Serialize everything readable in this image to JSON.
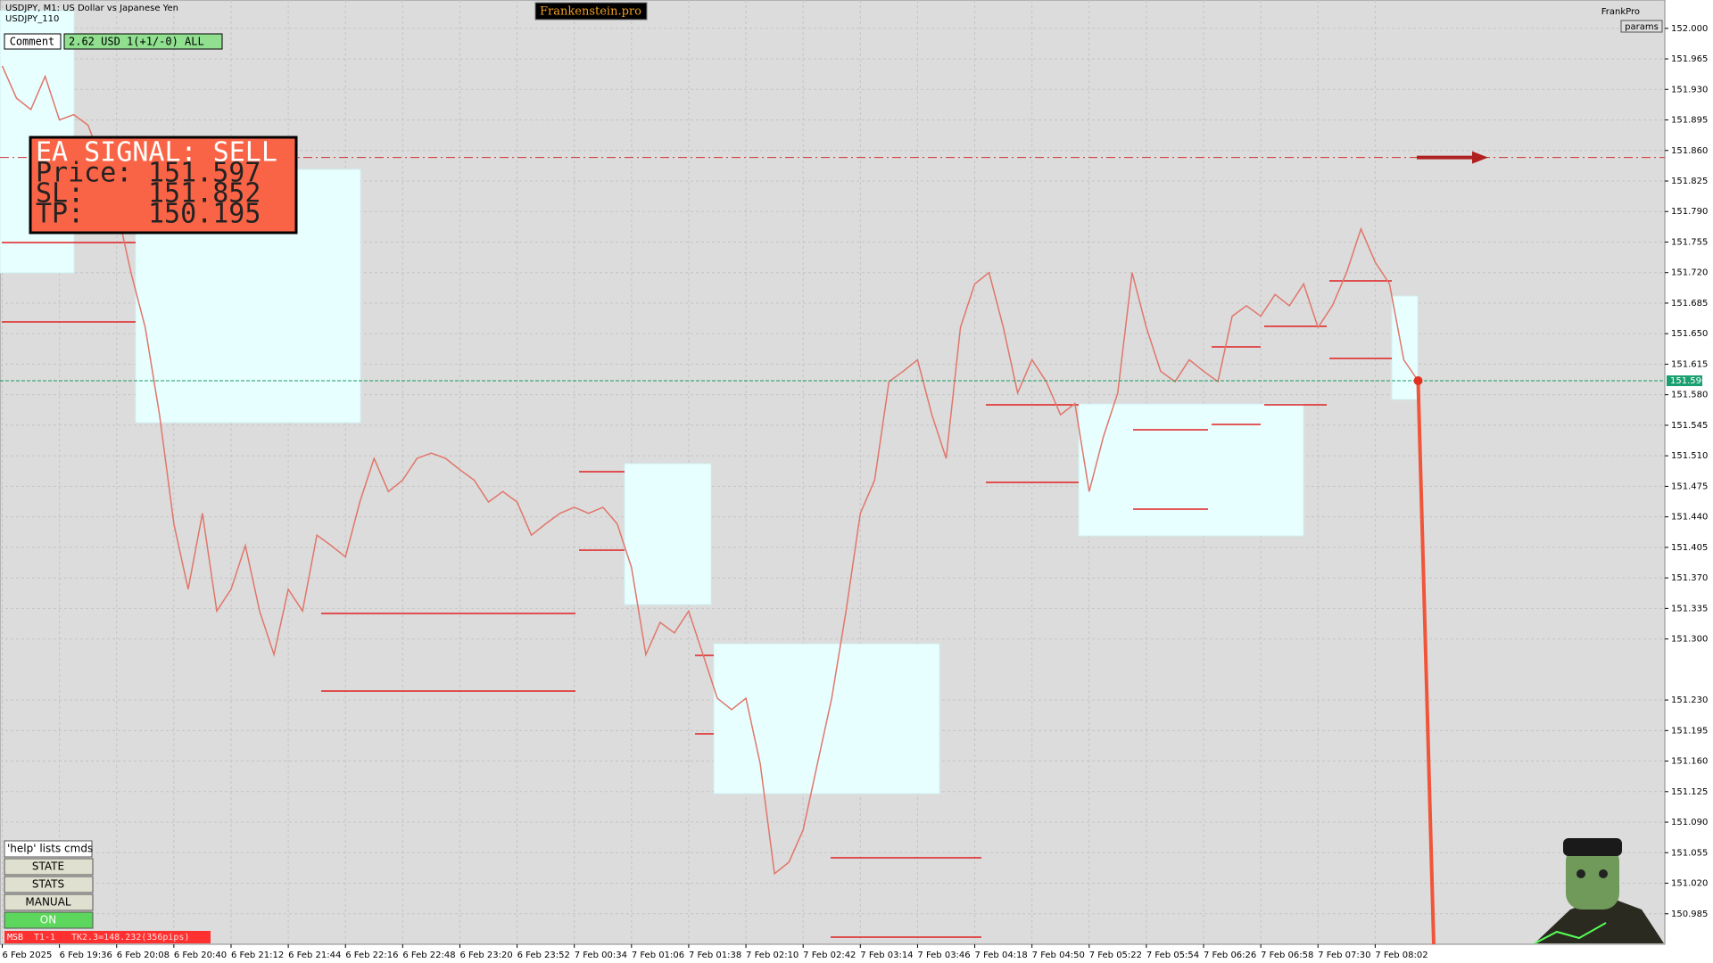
{
  "header": {
    "title": "USDJPY, M1:  US Dollar vs Japanese Yen",
    "subtitle": "USDJPY_110",
    "brand": "Frankenstein.pro",
    "account": "FrankPro",
    "params": "params"
  },
  "comment": {
    "label": "Comment",
    "text": "2.62 USD 1(+1/-0) ALL"
  },
  "ea_signal": {
    "title": "EA SIGNAL: SELL",
    "price_label": "Price:",
    "price": 151.597,
    "sl_label": "SL:",
    "sl": 151.852,
    "tp_label": "TP:",
    "tp": 150.195
  },
  "buttons": [
    "'help' lists cmds",
    "STATE",
    "STATS",
    "MANUAL",
    "ON"
  ],
  "status": {
    "mode": "MSB",
    "tier": "T1-1",
    "target": "TK2.3=148.232(356pips)"
  },
  "chart_data": {
    "type": "line",
    "color": "#e0766a",
    "grid": true,
    "current_price": 151.596,
    "ylim": [
      150.95,
      152.0325
    ],
    "yticks": [
      {
        "value": 152,
        "label": "152.000"
      },
      151.965,
      {
        "value": 151.93,
        "label": "151.930"
      },
      151.895,
      {
        "value": 151.86,
        "label": "151.860"
      },
      151.825,
      {
        "value": 151.79,
        "label": "151.790"
      },
      151.755,
      {
        "value": 151.72,
        "label": "151.720"
      },
      151.685,
      {
        "value": 151.65,
        "label": "151.650"
      },
      151.615,
      {
        "value": 151.58,
        "label": "151.580"
      },
      151.545,
      {
        "value": 151.51,
        "label": "151.510"
      },
      151.475,
      {
        "value": 151.44,
        "label": "151.440"
      },
      151.405,
      {
        "value": 151.37,
        "label": "151.370"
      },
      151.335,
      {
        "value": 151.3,
        "label": "151.300"
      },
      {
        "value": 151.23,
        "label": "151.230"
      },
      151.195,
      {
        "value": 151.16,
        "label": "151.160"
      },
      151.125,
      {
        "value": 151.09,
        "label": "151.090"
      },
      151.055,
      {
        "value": 151.02,
        "label": "151.020"
      },
      150.985
    ],
    "categories": [
      "6 Feb 2025",
      null,
      null,
      null,
      "6 Feb 19:36",
      null,
      null,
      null,
      "6 Feb 20:08",
      null,
      null,
      null,
      "6 Feb 20:40",
      null,
      null,
      null,
      "6 Feb 21:12",
      null,
      null,
      null,
      "6 Feb 21:44",
      null,
      null,
      null,
      "6 Feb 22:16",
      null,
      null,
      null,
      "6 Feb 22:48",
      null,
      null,
      null,
      "6 Feb 23:20",
      null,
      null,
      null,
      "6 Feb 23:52",
      null,
      null,
      null,
      "7 Feb 00:34",
      null,
      null,
      null,
      "7 Feb 01:06",
      null,
      null,
      null,
      "7 Feb 01:38",
      null,
      null,
      null,
      "7 Feb 02:10",
      null,
      null,
      null,
      "7 Feb 02:42",
      null,
      null,
      null,
      "7 Feb 03:14",
      null,
      null,
      null,
      "7 Feb 03:46",
      null,
      null,
      null,
      "7 Feb 04:18",
      null,
      null,
      null,
      "7 Feb 04:50",
      null,
      null,
      null,
      "7 Feb 05:22",
      null,
      null,
      null,
      "7 Feb 05:54",
      null,
      null,
      null,
      "7 Feb 06:26",
      null,
      null,
      null,
      "7 Feb 06:58",
      null,
      null,
      null,
      "7 Feb 07:30",
      null,
      null,
      null,
      "7 Feb 08:02",
      null,
      null,
      null
    ],
    "values": [
      151.957,
      151.92,
      151.907,
      151.945,
      151.895,
      151.901,
      151.889,
      151.845,
      151.795,
      151.72,
      151.657,
      151.557,
      151.432,
      151.357,
      151.444,
      151.332,
      151.357,
      151.407,
      151.332,
      151.282,
      151.357,
      151.332,
      151.419,
      151.407,
      151.394,
      151.457,
      151.507,
      151.469,
      151.482,
      151.507,
      151.513,
      151.507,
      151.494,
      151.482,
      151.457,
      151.469,
      151.457,
      151.419,
      151.432,
      151.444,
      151.451,
      151.444,
      151.451,
      151.432,
      151.382,
      151.282,
      151.319,
      151.307,
      151.332,
      151.282,
      151.232,
      151.219,
      151.232,
      151.157,
      151.031,
      151.044,
      151.081,
      151.157,
      151.232,
      151.332,
      151.444,
      151.482,
      151.595,
      151.607,
      151.62,
      151.557,
      151.507,
      151.657,
      151.707,
      151.72,
      151.657,
      151.582,
      151.62,
      151.595,
      151.557,
      151.57,
      151.469,
      151.532,
      151.582,
      151.72,
      151.657,
      151.607,
      151.595,
      151.62,
      151.607,
      151.595,
      151.67,
      151.682,
      151.67,
      151.695,
      151.682,
      151.707,
      151.657,
      151.682,
      151.72,
      151.77,
      151.732,
      151.707,
      151.62,
      151.596
    ]
  }
}
